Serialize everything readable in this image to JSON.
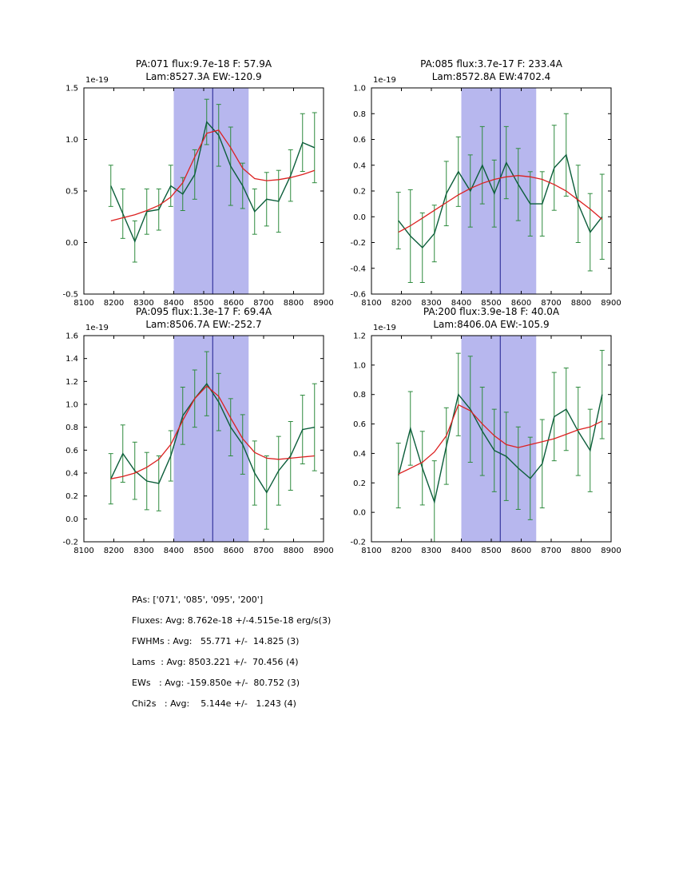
{
  "style": {
    "background": "#ffffff",
    "band_color": "#b7b7ee",
    "vline_color": "#1f1f8f",
    "data_color": "#0b5d3a",
    "err_color": "#2e8b3e",
    "fit_color": "#dc2020",
    "axis_color": "#000000"
  },
  "summary": {
    "lines": [
      "PAs: ['071', '085', '095', '200']",
      "Fluxes: Avg: 8.762e-18 +/-4.515e-18 erg/s(3)",
      "FWHMs : Avg:   55.771 +/-  14.825 (3)",
      "Lams  : Avg: 8503.221 +/-  70.456 (4)",
      "EWs   : Avg: -159.850e +/-  80.752 (3)",
      "Chi2s   : Avg:    5.144e +/-   1.243 (4)"
    ]
  },
  "chart_data": [
    {
      "type": "line",
      "title1": "PA:071 flux:9.7e-18 F: 57.9A",
      "title2": "Lam:8527.3A EW:-120.9",
      "offset": "1e-19",
      "xlim": [
        8100,
        8900
      ],
      "ylim": [
        -0.5,
        1.5
      ],
      "xtick_vals": [
        8100,
        8200,
        8300,
        8400,
        8500,
        8600,
        8700,
        8800,
        8900
      ],
      "xtick_labels": [
        "8100",
        "8200",
        "8300",
        "8400",
        "8500",
        "8600",
        "8700",
        "8800",
        "8900"
      ],
      "ytick_vals": [
        -0.5,
        0.0,
        0.5,
        1.0,
        1.5
      ],
      "ytick_labels": [
        "-0.5",
        "0.0",
        "0.5",
        "1.0",
        "1.5"
      ],
      "band": [
        8400,
        8650
      ],
      "vline": 8530,
      "x": [
        8190,
        8230,
        8270,
        8310,
        8350,
        8390,
        8430,
        8470,
        8510,
        8550,
        8590,
        8630,
        8670,
        8710,
        8750,
        8790,
        8830,
        8870
      ],
      "y": [
        0.55,
        0.28,
        0.01,
        0.3,
        0.32,
        0.55,
        0.47,
        0.66,
        1.17,
        1.04,
        0.74,
        0.55,
        0.3,
        0.42,
        0.4,
        0.65,
        0.97,
        0.92
      ],
      "err": [
        0.2,
        0.24,
        0.2,
        0.22,
        0.2,
        0.2,
        0.16,
        0.24,
        0.22,
        0.3,
        0.38,
        0.22,
        0.22,
        0.26,
        0.3,
        0.25,
        0.28,
        0.34
      ],
      "fit": [
        0.21,
        0.24,
        0.27,
        0.31,
        0.36,
        0.44,
        0.58,
        0.83,
        1.06,
        1.09,
        0.92,
        0.72,
        0.62,
        0.6,
        0.61,
        0.63,
        0.66,
        0.7
      ]
    },
    {
      "type": "line",
      "title1": "PA:085 flux:3.7e-17 F: 233.4A",
      "title2": "Lam:8572.8A EW:4702.4",
      "offset": "1e-19",
      "xlim": [
        8100,
        8900
      ],
      "ylim": [
        -0.6,
        1.0
      ],
      "xtick_vals": [
        8100,
        8200,
        8300,
        8400,
        8500,
        8600,
        8700,
        8800,
        8900
      ],
      "xtick_labels": [
        "8100",
        "8200",
        "8300",
        "8400",
        "8500",
        "8600",
        "8700",
        "8800",
        "8900"
      ],
      "ytick_vals": [
        -0.6,
        -0.4,
        -0.2,
        0.0,
        0.2,
        0.4,
        0.6,
        0.8,
        1.0
      ],
      "ytick_labels": [
        "-0.6",
        "-0.4",
        "-0.2",
        "0.0",
        "0.2",
        "0.4",
        "0.6",
        "0.8",
        "1.0"
      ],
      "band": [
        8400,
        8650
      ],
      "vline": 8530,
      "x": [
        8190,
        8230,
        8270,
        8310,
        8350,
        8390,
        8430,
        8470,
        8510,
        8550,
        8590,
        8630,
        8670,
        8710,
        8750,
        8790,
        8830,
        8870
      ],
      "y": [
        -0.03,
        -0.15,
        -0.24,
        -0.13,
        0.18,
        0.35,
        0.2,
        0.4,
        0.18,
        0.42,
        0.25,
        0.1,
        0.1,
        0.38,
        0.48,
        0.1,
        -0.12,
        0.0
      ],
      "err": [
        0.22,
        0.36,
        0.27,
        0.22,
        0.25,
        0.27,
        0.28,
        0.3,
        0.26,
        0.28,
        0.28,
        0.25,
        0.25,
        0.33,
        0.32,
        0.3,
        0.3,
        0.33
      ],
      "fit": [
        -0.12,
        -0.07,
        -0.01,
        0.05,
        0.11,
        0.17,
        0.22,
        0.26,
        0.29,
        0.31,
        0.32,
        0.31,
        0.29,
        0.25,
        0.2,
        0.13,
        0.06,
        -0.02
      ]
    },
    {
      "type": "line",
      "title1": "PA:095 flux:1.3e-17 F: 69.4A",
      "title2": "Lam:8506.7A EW:-252.7",
      "offset": "1e-19",
      "xlim": [
        8100,
        8900
      ],
      "ylim": [
        -0.2,
        1.6
      ],
      "xtick_vals": [
        8100,
        8200,
        8300,
        8400,
        8500,
        8600,
        8700,
        8800,
        8900
      ],
      "xtick_labels": [
        "8100",
        "8200",
        "8300",
        "8400",
        "8500",
        "8600",
        "8700",
        "8800",
        "8900"
      ],
      "ytick_vals": [
        -0.2,
        0.0,
        0.2,
        0.4,
        0.6,
        0.8,
        1.0,
        1.2,
        1.4,
        1.6
      ],
      "ytick_labels": [
        "-0.2",
        "0.0",
        "0.2",
        "0.4",
        "0.6",
        "0.8",
        "1.0",
        "1.2",
        "1.4",
        "1.6"
      ],
      "band": [
        8400,
        8650
      ],
      "vline": 8530,
      "x": [
        8190,
        8230,
        8270,
        8310,
        8350,
        8390,
        8430,
        8470,
        8510,
        8550,
        8590,
        8630,
        8670,
        8710,
        8750,
        8790,
        8830,
        8870
      ],
      "y": [
        0.35,
        0.57,
        0.42,
        0.33,
        0.31,
        0.55,
        0.9,
        1.05,
        1.18,
        1.02,
        0.8,
        0.65,
        0.4,
        0.23,
        0.42,
        0.55,
        0.78,
        0.8
      ],
      "err": [
        0.22,
        0.25,
        0.25,
        0.25,
        0.24,
        0.22,
        0.25,
        0.25,
        0.28,
        0.25,
        0.25,
        0.26,
        0.28,
        0.32,
        0.3,
        0.3,
        0.3,
        0.38
      ],
      "fit": [
        0.35,
        0.37,
        0.4,
        0.45,
        0.52,
        0.65,
        0.86,
        1.05,
        1.16,
        1.07,
        0.88,
        0.7,
        0.58,
        0.53,
        0.52,
        0.53,
        0.54,
        0.55
      ]
    },
    {
      "type": "line",
      "title1": "PA:200 flux:3.9e-18 F: 40.0A",
      "title2": "Lam:8406.0A EW:-105.9",
      "offset": "1e-19",
      "xlim": [
        8100,
        8900
      ],
      "ylim": [
        -0.2,
        1.2
      ],
      "xtick_vals": [
        8100,
        8200,
        8300,
        8400,
        8500,
        8600,
        8700,
        8800,
        8900
      ],
      "xtick_labels": [
        "8100",
        "8200",
        "8300",
        "8400",
        "8500",
        "8600",
        "8700",
        "8800",
        "8900"
      ],
      "ytick_vals": [
        -0.2,
        0.0,
        0.2,
        0.4,
        0.6,
        0.8,
        1.0,
        1.2
      ],
      "ytick_labels": [
        "-0.2",
        "0.0",
        "0.2",
        "0.4",
        "0.6",
        "0.8",
        "1.0",
        "1.2"
      ],
      "band": [
        8400,
        8650
      ],
      "vline": 8530,
      "x": [
        8190,
        8230,
        8270,
        8310,
        8350,
        8390,
        8430,
        8470,
        8510,
        8550,
        8590,
        8630,
        8670,
        8710,
        8750,
        8790,
        8830,
        8870
      ],
      "y": [
        0.25,
        0.57,
        0.3,
        0.07,
        0.45,
        0.8,
        0.7,
        0.55,
        0.42,
        0.38,
        0.3,
        0.23,
        0.33,
        0.65,
        0.7,
        0.55,
        0.42,
        0.8
      ],
      "err": [
        0.22,
        0.25,
        0.25,
        0.28,
        0.26,
        0.28,
        0.36,
        0.3,
        0.28,
        0.3,
        0.28,
        0.28,
        0.3,
        0.3,
        0.28,
        0.3,
        0.28,
        0.3
      ],
      "fit": [
        0.26,
        0.3,
        0.34,
        0.41,
        0.52,
        0.73,
        0.69,
        0.6,
        0.52,
        0.46,
        0.44,
        0.46,
        0.48,
        0.5,
        0.53,
        0.56,
        0.58,
        0.62
      ]
    }
  ]
}
